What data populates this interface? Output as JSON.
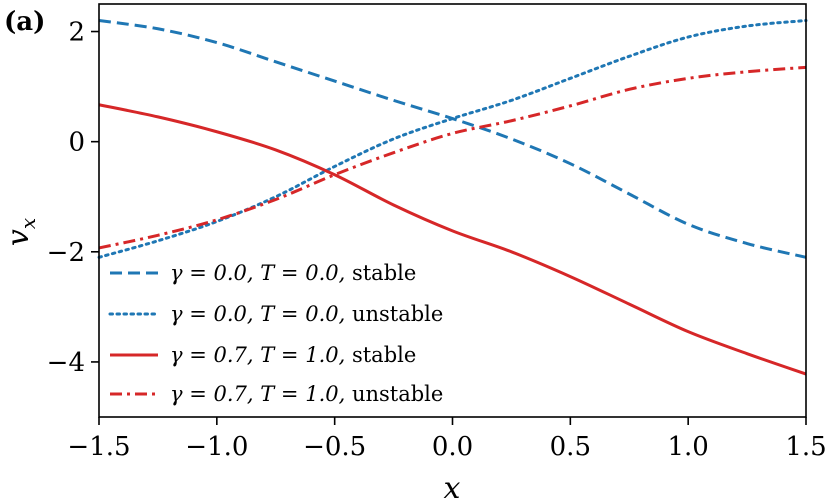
{
  "chart_data": {
    "type": "line",
    "panel_label": "(a)",
    "xlabel": "x",
    "ylabel": "v",
    "ylabel_subscript": "x",
    "xlim": [
      -1.5,
      1.5
    ],
    "ylim": [
      -5,
      2.5
    ],
    "x_ticks": [
      -1.5,
      -1.0,
      -0.5,
      0.0,
      0.5,
      1.0,
      1.5
    ],
    "x_tick_labels": [
      "−1.5",
      "−1.0",
      "−0.5",
      "0.0",
      "0.5",
      "1.0",
      "1.5"
    ],
    "y_ticks": [
      -4,
      -2,
      0,
      2
    ],
    "y_tick_labels": [
      "−4",
      "−2",
      "0",
      "2"
    ],
    "legend_position": "lower-left",
    "series": [
      {
        "name": "γ = 0.0, T = 0.0, stable",
        "color": "#1f77b4",
        "dash": "dashed",
        "x": [
          -1.5,
          -1.25,
          -1.0,
          -0.75,
          -0.5,
          -0.25,
          0.0,
          0.25,
          0.5,
          0.75,
          1.0,
          1.25,
          1.5
        ],
        "y": [
          2.2,
          2.05,
          1.8,
          1.45,
          1.1,
          0.75,
          0.42,
          0.05,
          -0.4,
          -0.95,
          -1.5,
          -1.85,
          -2.1
        ]
      },
      {
        "name": "γ = 0.0, T = 0.0, unstable",
        "color": "#1f77b4",
        "dash": "dotted",
        "x": [
          -1.5,
          -1.25,
          -1.0,
          -0.75,
          -0.5,
          -0.25,
          0.0,
          0.25,
          0.5,
          0.75,
          1.0,
          1.25,
          1.5
        ],
        "y": [
          -2.1,
          -1.8,
          -1.45,
          -1.0,
          -0.45,
          0.05,
          0.42,
          0.75,
          1.15,
          1.55,
          1.9,
          2.1,
          2.2
        ]
      },
      {
        "name": "γ = 0.7, T = 1.0, stable",
        "color": "#d62728",
        "dash": "solid",
        "x": [
          -1.5,
          -1.25,
          -1.0,
          -0.75,
          -0.5,
          -0.25,
          0.0,
          0.25,
          0.5,
          0.75,
          1.0,
          1.25,
          1.5
        ],
        "y": [
          0.67,
          0.45,
          0.18,
          -0.15,
          -0.6,
          -1.15,
          -1.62,
          -2.0,
          -2.45,
          -2.95,
          -3.45,
          -3.85,
          -4.22
        ]
      },
      {
        "name": "γ = 0.7, T = 1.0, unstable",
        "color": "#d62728",
        "dash": "dashdot",
        "x": [
          -1.5,
          -1.25,
          -1.0,
          -0.75,
          -0.5,
          -0.25,
          0.0,
          0.25,
          0.5,
          0.75,
          1.0,
          1.25,
          1.5
        ],
        "y": [
          -1.93,
          -1.7,
          -1.42,
          -1.05,
          -0.6,
          -0.2,
          0.15,
          0.38,
          0.65,
          0.95,
          1.15,
          1.27,
          1.35
        ]
      }
    ],
    "legend_entries": [
      {
        "gamma": "γ = 0.0,",
        "T": "T = 0.0,",
        "kind": "stable"
      },
      {
        "gamma": "γ = 0.0,",
        "T": "T = 0.0,",
        "kind": "unstable"
      },
      {
        "gamma": "γ = 0.7,",
        "T": "T = 1.0,",
        "kind": "stable"
      },
      {
        "gamma": "γ = 0.7,",
        "T": "T = 1.0,",
        "kind": "unstable"
      }
    ]
  }
}
